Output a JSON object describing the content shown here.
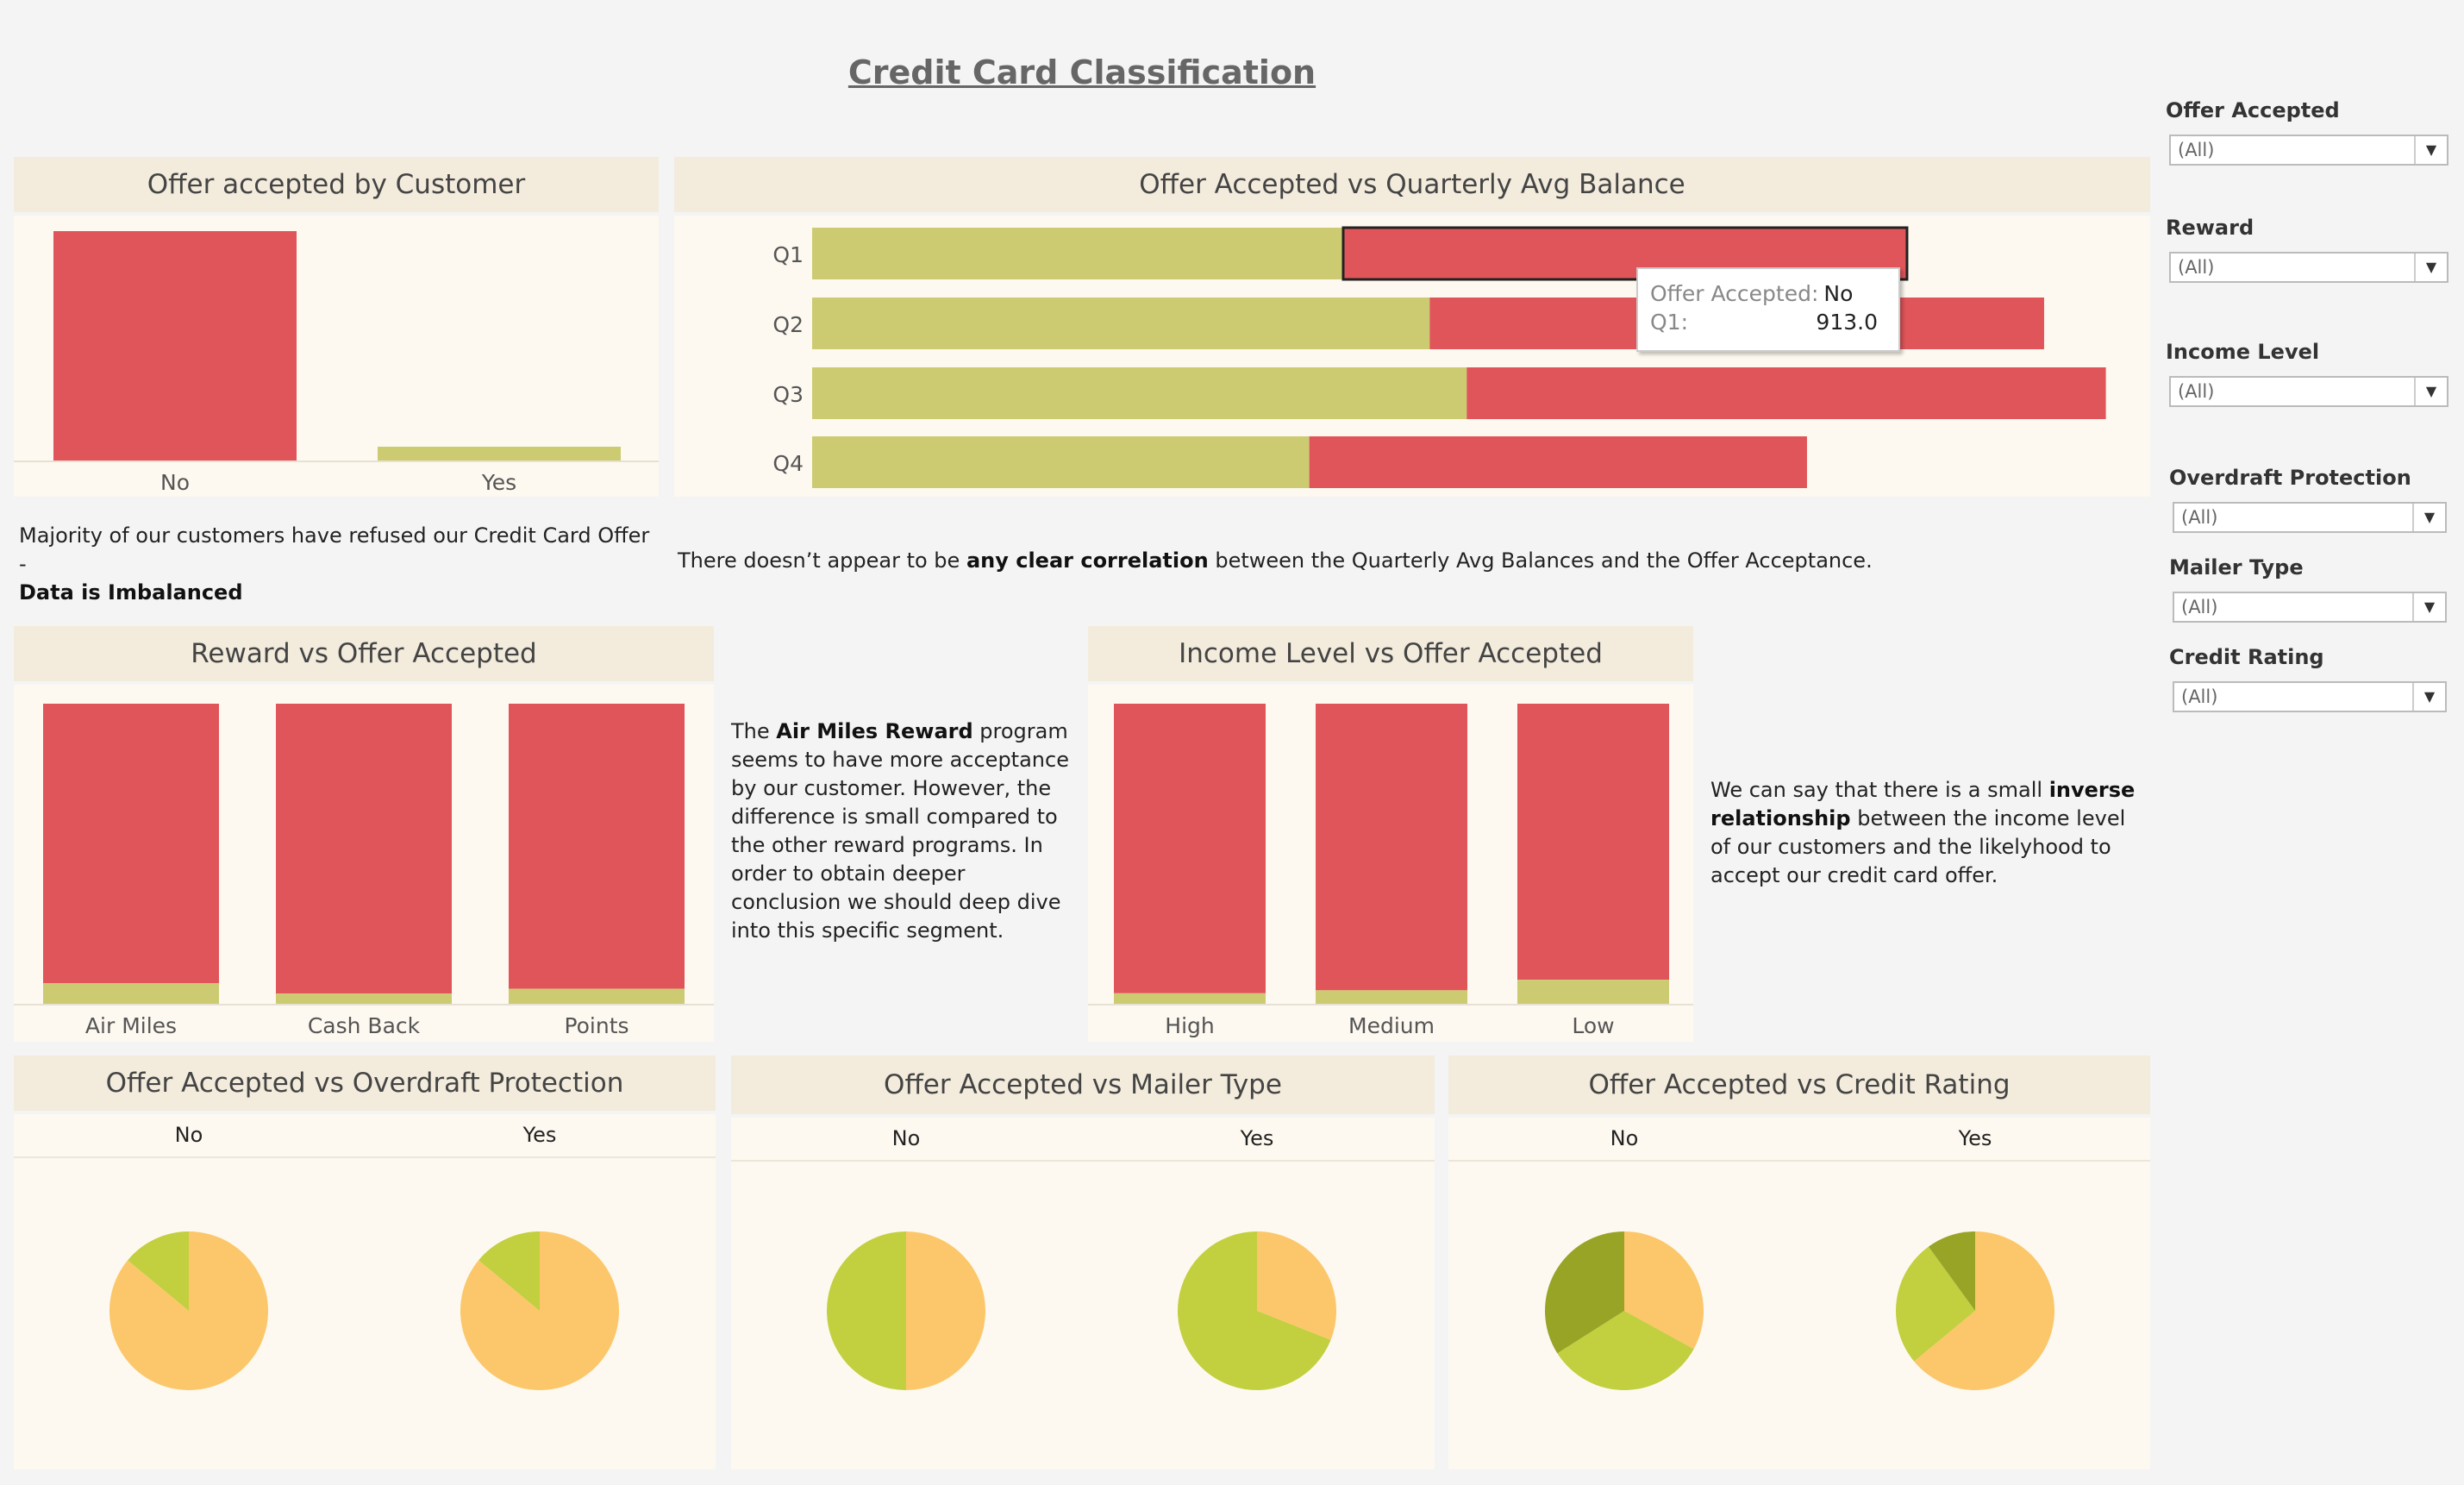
{
  "dashboard_title": "Credit Card Classification",
  "colors": {
    "no": "#e0555a",
    "yes": "#cccb72",
    "pie_a": "#fcc76a",
    "pie_b": "#c2cf3f",
    "pie_c": "#97a426"
  },
  "notes": {
    "imbalance_1": "Majority of our customers have refused our Credit Card Offer -",
    "imbalance_2": "Data is Imbalanced",
    "corr_1": "There doesn’t appear to be ",
    "corr_b": "any clear correlation",
    "corr_2": " between the Quarterly Avg Balances and the  Offer Acceptance.",
    "reward_1": "The ",
    "reward_b": "Air Miles Reward",
    "reward_2": " program seems to have more acceptance by our customer. However, the difference is small compared to the other reward programs. In order to obtain deeper conclusion we should deep dive into this specific segment.",
    "income_1": "We can say that there is a small ",
    "income_b": "inverse relationship",
    "income_2": " between the income level of our customers and the likelyhood to accept our credit card offer."
  },
  "filters": [
    {
      "label": "Offer Accepted",
      "value": "(All)"
    },
    {
      "label": "Reward",
      "value": "(All)"
    },
    {
      "label": "Income Level",
      "value": "(All)"
    },
    {
      "label": "Overdraft Protection",
      "value": "(All)"
    },
    {
      "label": "Mailer Type",
      "value": "(All)"
    },
    {
      "label": "Credit Rating",
      "value": "(All)"
    }
  ],
  "tooltip": {
    "label1": "Offer Accepted:",
    "value1": "No",
    "label2": "Q1:",
    "value2": "913.0"
  },
  "chart_data": [
    {
      "id": "offer_by_customer",
      "type": "bar",
      "title": "Offer accepted by Customer",
      "categories": [
        "No",
        "Yes"
      ],
      "values": [
        16955,
        1021
      ]
    },
    {
      "id": "quarterly_balance",
      "type": "bar",
      "orientation": "horizontal",
      "stacked": true,
      "title": "Offer Accepted vs Quarterly Avg Balance",
      "categories": [
        "Q1",
        "Q2",
        "Q3",
        "Q4"
      ],
      "series": [
        {
          "key": "yes",
          "values": [
            860,
            1000,
            1060,
            805
          ]
        },
        {
          "key": "no",
          "values": [
            913,
            995,
            1035,
            806
          ]
        }
      ]
    },
    {
      "id": "reward",
      "type": "bar",
      "stacked": true,
      "percent": true,
      "title": "Reward vs Offer Accepted",
      "categories": [
        "Air Miles",
        "Cash Back",
        "Points"
      ],
      "series": [
        {
          "key": "yes",
          "values": [
            6.9,
            3.4,
            5.0
          ]
        },
        {
          "key": "no",
          "values": [
            93.1,
            96.6,
            95.0
          ]
        }
      ]
    },
    {
      "id": "income",
      "type": "bar",
      "stacked": true,
      "percent": true,
      "title": "Income Level vs Offer Accepted",
      "categories": [
        "High",
        "Medium",
        "Low"
      ],
      "series": [
        {
          "key": "yes",
          "values": [
            3.5,
            4.5,
            8.0
          ]
        },
        {
          "key": "no",
          "values": [
            96.5,
            95.5,
            92.0
          ]
        }
      ]
    },
    {
      "id": "overdraft",
      "type": "pie",
      "title": "Offer Accepted vs Overdraft Protection",
      "pies": [
        {
          "label": "No",
          "slices": [
            {
              "color": "pie_a",
              "value": 86
            },
            {
              "color": "pie_b",
              "value": 14
            }
          ]
        },
        {
          "label": "Yes",
          "slices": [
            {
              "color": "pie_a",
              "value": 86
            },
            {
              "color": "pie_b",
              "value": 14
            }
          ]
        }
      ]
    },
    {
      "id": "mailer",
      "type": "pie",
      "title": "Offer Accepted vs Mailer Type",
      "pies": [
        {
          "label": "No",
          "slices": [
            {
              "color": "pie_a",
              "value": 50
            },
            {
              "color": "pie_b",
              "value": 50
            }
          ]
        },
        {
          "label": "Yes",
          "slices": [
            {
              "color": "pie_a",
              "value": 31
            },
            {
              "color": "pie_b",
              "value": 69
            }
          ]
        }
      ]
    },
    {
      "id": "credit",
      "type": "pie",
      "title": "Offer Accepted vs Credit Rating",
      "pies": [
        {
          "label": "No",
          "slices": [
            {
              "color": "pie_a",
              "value": 33
            },
            {
              "color": "pie_b",
              "value": 33
            },
            {
              "color": "pie_c",
              "value": 34
            }
          ]
        },
        {
          "label": "Yes",
          "slices": [
            {
              "color": "pie_a",
              "value": 64
            },
            {
              "color": "pie_b",
              "value": 26
            },
            {
              "color": "pie_c",
              "value": 10
            }
          ]
        }
      ]
    }
  ]
}
